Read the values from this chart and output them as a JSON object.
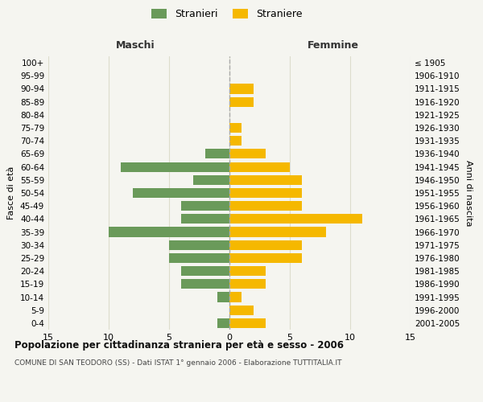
{
  "age_groups": [
    "0-4",
    "5-9",
    "10-14",
    "15-19",
    "20-24",
    "25-29",
    "30-34",
    "35-39",
    "40-44",
    "45-49",
    "50-54",
    "55-59",
    "60-64",
    "65-69",
    "70-74",
    "75-79",
    "80-84",
    "85-89",
    "90-94",
    "95-99",
    "100+"
  ],
  "birth_years": [
    "2001-2005",
    "1996-2000",
    "1991-1995",
    "1986-1990",
    "1981-1985",
    "1976-1980",
    "1971-1975",
    "1966-1970",
    "1961-1965",
    "1956-1960",
    "1951-1955",
    "1946-1950",
    "1941-1945",
    "1936-1940",
    "1931-1935",
    "1926-1930",
    "1921-1925",
    "1916-1920",
    "1911-1915",
    "1906-1910",
    "≤ 1905"
  ],
  "maschi": [
    1,
    0,
    1,
    4,
    4,
    5,
    5,
    10,
    4,
    4,
    8,
    3,
    9,
    2,
    0,
    0,
    0,
    0,
    0,
    0,
    0
  ],
  "femmine": [
    3,
    2,
    1,
    3,
    3,
    6,
    6,
    8,
    11,
    6,
    6,
    6,
    5,
    3,
    1,
    1,
    0,
    2,
    2,
    0,
    0
  ],
  "maschi_color": "#6a9a5a",
  "femmine_color": "#f5b800",
  "background_color": "#f5f5f0",
  "grid_color": "#ddddcc",
  "title": "Popolazione per cittadinanza straniera per età e sesso - 2006",
  "subtitle": "COMUNE DI SAN TEODORO (SS) - Dati ISTAT 1° gennaio 2006 - Elaborazione TUTTITALIA.IT",
  "ylabel_left": "Fasce di età",
  "ylabel_right": "Anni di nascita",
  "xlabel_maschi": "Maschi",
  "xlabel_femmine": "Femmine",
  "legend_stranieri": "Stranieri",
  "legend_straniere": "Straniere",
  "xlim": 15
}
